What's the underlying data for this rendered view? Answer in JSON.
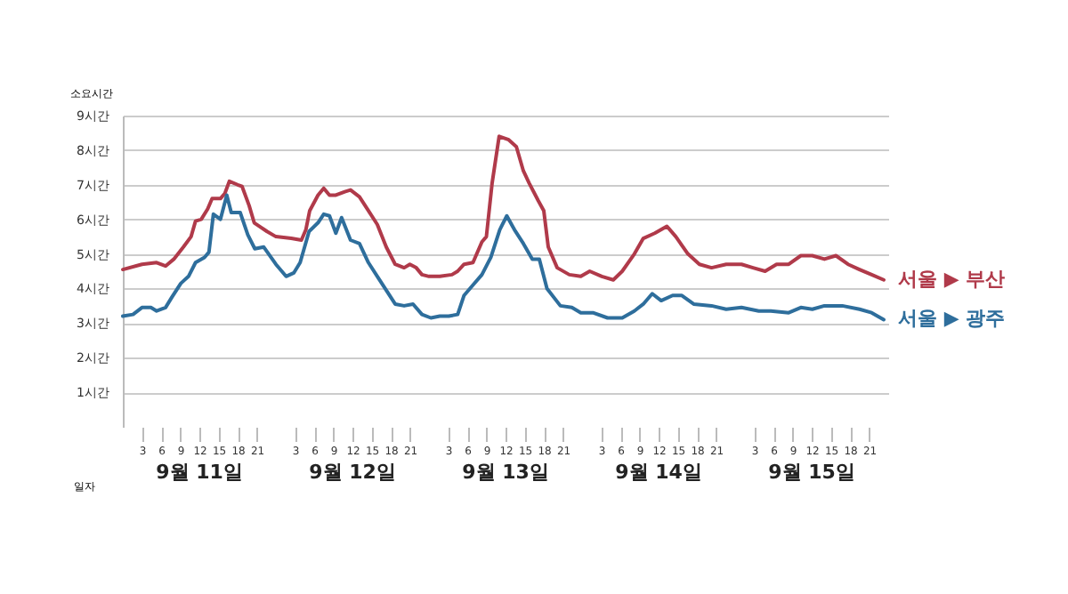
{
  "chart_data": {
    "type": "line",
    "xlabel": "일자",
    "ylabel": "소요시간",
    "xlim": [
      "--09-11T00:00",
      "--09-16T00:00"
    ],
    "xticks": [
      {
        "value": "--09-11T03:00",
        "label": "3"
      },
      {
        "value": "--09-11T06:00",
        "label": "6"
      },
      {
        "value": "--09-11T09:00",
        "label": "9"
      },
      {
        "value": "--09-11T12:00",
        "label": "12"
      },
      {
        "value": "--09-11T15:00",
        "label": "15"
      },
      {
        "value": "--09-11T18:00",
        "label": "18"
      },
      {
        "value": "--09-11T21:00",
        "label": "21"
      },
      {
        "value": "--09-12T03:00",
        "label": "3"
      },
      {
        "value": "--09-12T06:00",
        "label": "6"
      },
      {
        "value": "--09-12T09:00",
        "label": "9"
      },
      {
        "value": "--09-12T12:00",
        "label": "12"
      },
      {
        "value": "--09-12T15:00",
        "label": "15"
      },
      {
        "value": "--09-12T18:00",
        "label": "18"
      },
      {
        "value": "--09-12T21:00",
        "label": "21"
      },
      {
        "value": "--09-13T03:00",
        "label": "3"
      },
      {
        "value": "--09-13T06:00",
        "label": "6"
      },
      {
        "value": "--09-13T09:00",
        "label": "9"
      },
      {
        "value": "--09-13T12:00",
        "label": "12"
      },
      {
        "value": "--09-13T15:00",
        "label": "15"
      },
      {
        "value": "--09-13T18:00",
        "label": "18"
      },
      {
        "value": "--09-13T21:00",
        "label": "21"
      },
      {
        "value": "--09-14T03:00",
        "label": "3"
      },
      {
        "value": "--09-14T06:00",
        "label": "6"
      },
      {
        "value": "--09-14T09:00",
        "label": "9"
      },
      {
        "value": "--09-14T12:00",
        "label": "12"
      },
      {
        "value": "--09-14T15:00",
        "label": "15"
      },
      {
        "value": "--09-14T18:00",
        "label": "18"
      },
      {
        "value": "--09-14T21:00",
        "label": "21"
      },
      {
        "value": "--09-15T03:00",
        "label": "3"
      },
      {
        "value": "--09-15T06:00",
        "label": "6"
      },
      {
        "value": "--09-15T09:00",
        "label": "9"
      },
      {
        "value": "--09-15T12:00",
        "label": "12"
      },
      {
        "value": "--09-15T15:00",
        "label": "15"
      },
      {
        "value": "--09-15T18:00",
        "label": "18"
      },
      {
        "value": "--09-15T21:00",
        "label": "21"
      }
    ],
    "ylim": [
      0,
      9
    ],
    "yticks": [
      {
        "value": 1,
        "label": "1시간"
      },
      {
        "value": 2,
        "label": "2시간"
      },
      {
        "value": 3,
        "label": "3시간"
      },
      {
        "value": 4,
        "label": "4시간"
      },
      {
        "value": 5,
        "label": "5시간"
      },
      {
        "value": 6,
        "label": "6시간"
      },
      {
        "value": 7,
        "label": "7시간"
      },
      {
        "value": 8,
        "label": "8시간"
      },
      {
        "value": 9,
        "label": "9시간"
      }
    ],
    "grid": "y",
    "marker": "none",
    "line_style": "solid",
    "annotations": [
      "9월 11일",
      "9월 12일",
      "9월 13일",
      "9월 14일",
      "9월 15일"
    ],
    "series": [
      {
        "name": "서울 ▶ 부산",
        "color": "#b03a4a",
        "x": [
          "--09-11T00:00",
          "--09-11T03:00",
          "--09-11T05:18",
          "--09-11T06:42",
          "--09-11T08:00",
          "--09-11T09:30",
          "--09-11T10:42",
          "--09-11T11:24",
          "--09-11T12:18",
          "--09-11T13:18",
          "--09-11T14:00",
          "--09-11T15:18",
          "--09-11T16:00",
          "--09-11T16:42",
          "--09-11T18:00",
          "--09-11T18:42",
          "--09-11T19:48",
          "--09-11T20:36",
          "--09-11T22:36",
          "--09-12T00:00",
          "--09-12T02:24",
          "--09-12T04:00",
          "--09-12T04:42",
          "--09-12T05:18",
          "--09-12T06:36",
          "--09-12T07:30",
          "--09-12T08:24",
          "--09-12T09:24",
          "--09-12T10:48",
          "--09-12T11:42",
          "--09-12T13:06",
          "--09-12T14:30",
          "--09-12T15:54",
          "--09-12T17:18",
          "--09-12T18:42",
          "--09-12T20:06",
          "--09-12T21:00",
          "--09-12T22:00",
          "--09-12T22:54",
          "--09-13T00:00",
          "--09-13T01:42",
          "--09-13T03:36",
          "--09-13T04:30",
          "--09-13T05:30",
          "--09-13T06:54",
          "--09-13T08:18",
          "--09-13T09:00",
          "--09-13T09:54",
          "--09-13T11:00",
          "--09-13T12:30",
          "--09-13T13:42",
          "--09-13T14:48",
          "--09-13T15:42",
          "--09-13T17:06",
          "--09-13T18:00",
          "--09-13T18:42",
          "--09-13T20:06",
          "--09-13T22:00",
          "--09-13T23:48",
          "--09-14T01:12",
          "--09-14T03:06",
          "--09-14T04:54",
          "--09-14T06:18",
          "--09-14T08:12",
          "--09-14T09:36",
          "--09-14T11:24",
          "--09-14T13:18",
          "--09-14T14:42",
          "--09-14T16:36",
          "--09-14T18:24",
          "--09-14T20:18",
          "--09-14T22:36",
          "--09-15T01:00",
          "--09-15T02:48",
          "--09-15T04:42",
          "--09-15T06:30",
          "--09-15T08:24",
          "--09-15T10:18",
          "--09-15T12:06",
          "--09-15T14:00",
          "--09-15T15:48",
          "--09-15T17:42",
          "--09-15T19:30",
          "--09-15T21:24",
          "--09-15T23:18"
        ],
        "values": [
          4.55,
          4.7,
          4.75,
          4.65,
          4.85,
          5.2,
          5.5,
          5.95,
          6.0,
          6.3,
          6.6,
          6.6,
          6.75,
          7.1,
          7.0,
          6.95,
          6.4,
          5.9,
          5.65,
          5.5,
          5.45,
          5.4,
          5.7,
          6.25,
          6.7,
          6.9,
          6.7,
          6.7,
          6.8,
          6.85,
          6.65,
          6.25,
          5.85,
          5.2,
          4.7,
          4.6,
          4.7,
          4.6,
          4.4,
          4.35,
          4.35,
          4.4,
          4.5,
          4.7,
          4.75,
          5.35,
          5.5,
          7.05,
          8.4,
          8.3,
          8.1,
          7.4,
          7.05,
          6.55,
          6.25,
          5.2,
          4.6,
          4.4,
          4.35,
          4.5,
          4.35,
          4.25,
          4.5,
          5.0,
          5.45,
          5.6,
          5.8,
          5.5,
          5.0,
          4.7,
          4.6,
          4.7,
          4.7,
          4.6,
          4.5,
          4.7,
          4.7,
          4.95,
          4.95,
          4.85,
          4.95,
          4.7,
          4.55,
          4.4,
          4.25
        ]
      },
      {
        "name": "서울 ▶ 광주",
        "color": "#2e6e9c",
        "x": [
          "--09-11T00:00",
          "--09-11T01:36",
          "--09-11T03:00",
          "--09-11T04:24",
          "--09-11T05:18",
          "--09-11T06:42",
          "--09-11T07:42",
          "--09-11T09:06",
          "--09-11T10:18",
          "--09-11T11:24",
          "--09-11T12:48",
          "--09-11T13:30",
          "--09-11T14:12",
          "--09-11T15:18",
          "--09-11T16:18",
          "--09-11T17:00",
          "--09-11T18:24",
          "--09-11T19:36",
          "--09-11T20:42",
          "--09-11T22:06",
          "--09-12T00:00",
          "--09-12T01:36",
          "--09-12T02:48",
          "--09-12T03:48",
          "--09-12T05:12",
          "--09-12T06:36",
          "--09-12T07:30",
          "--09-12T08:24",
          "--09-12T09:24",
          "--09-12T10:18",
          "--09-12T11:42",
          "--09-12T13:06",
          "--09-12T14:30",
          "--09-12T15:54",
          "--09-12T17:18",
          "--09-12T18:42",
          "--09-12T20:06",
          "--09-12T21:30",
          "--09-12T22:54",
          "--09-13T00:18",
          "--09-13T01:42",
          "--09-13T03:06",
          "--09-13T04:30",
          "--09-13T05:30",
          "--09-13T06:54",
          "--09-13T08:18",
          "--09-13T09:42",
          "--09-13T11:06",
          "--09-13T12:12",
          "--09-13T13:24",
          "--09-13T14:48",
          "--09-13T16:12",
          "--09-13T17:18",
          "--09-13T18:30",
          "--09-13T20:36",
          "--09-13T22:24",
          "--09-13T23:48",
          "--09-14T01:42",
          "--09-14T04:00",
          "--09-14T06:18",
          "--09-14T08:12",
          "--09-14T09:36",
          "--09-14T11:00",
          "--09-14T12:24",
          "--09-14T14:12",
          "--09-14T15:36",
          "--09-14T17:30",
          "--09-14T20:18",
          "--09-14T22:36",
          "--09-15T01:00",
          "--09-15T03:42",
          "--09-15T05:36",
          "--09-15T08:24",
          "--09-15T10:18",
          "--09-15T12:06",
          "--09-15T14:00",
          "--09-15T16:48",
          "--09-15T19:30",
          "--09-15T21:24",
          "--09-15T23:18"
        ],
        "values": [
          3.2,
          3.25,
          3.45,
          3.45,
          3.35,
          3.45,
          3.75,
          4.15,
          4.35,
          4.75,
          4.9,
          5.05,
          6.15,
          6.0,
          6.7,
          6.2,
          6.2,
          5.55,
          5.15,
          5.2,
          4.7,
          4.35,
          4.45,
          4.75,
          5.65,
          5.9,
          6.15,
          6.1,
          5.6,
          6.05,
          5.4,
          5.3,
          4.75,
          4.35,
          3.95,
          3.55,
          3.5,
          3.55,
          3.25,
          3.15,
          3.2,
          3.2,
          3.25,
          3.8,
          4.1,
          4.4,
          4.9,
          5.7,
          6.1,
          5.7,
          5.3,
          4.85,
          4.85,
          4.0,
          3.5,
          3.45,
          3.3,
          3.3,
          3.15,
          3.15,
          3.35,
          3.55,
          3.85,
          3.65,
          3.8,
          3.8,
          3.55,
          3.5,
          3.4,
          3.45,
          3.35,
          3.35,
          3.3,
          3.45,
          3.4,
          3.5,
          3.5,
          3.4,
          3.3,
          3.1
        ]
      }
    ]
  }
}
